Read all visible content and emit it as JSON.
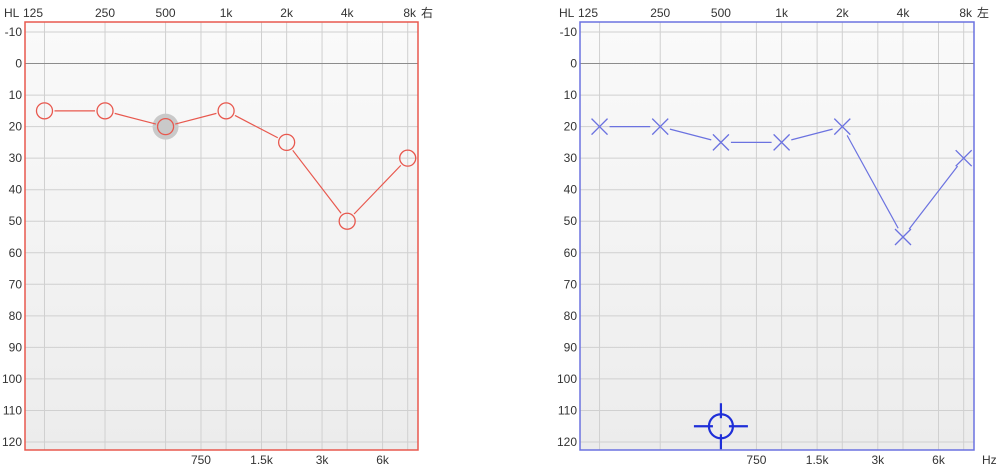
{
  "colors": {
    "right_ear": "#e8584e",
    "left_ear": "#6b72e0",
    "left_cursor": "#1f2fd8",
    "grid": "#d0d0d0",
    "zero_line": "#8c8c8c",
    "selection_halo": "#c9c9c9",
    "plot_background_top": "#fafafa",
    "plot_background_bottom": "#ececec"
  },
  "chart_data": [
    {
      "type": "scatter",
      "ear_label": "右",
      "hl_label": "HL",
      "hz_label": "",
      "x_scale": "log",
      "x_top_ticks": [
        {
          "value": 125,
          "label": "125"
        },
        {
          "value": 250,
          "label": "250"
        },
        {
          "value": 500,
          "label": "500"
        },
        {
          "value": 1000,
          "label": "1k"
        },
        {
          "value": 2000,
          "label": "2k"
        },
        {
          "value": 4000,
          "label": "4k"
        },
        {
          "value": 8000,
          "label": "8k"
        }
      ],
      "x_bottom_ticks": [
        {
          "value": 750,
          "label": "750"
        },
        {
          "value": 1500,
          "label": "1.5k"
        },
        {
          "value": 3000,
          "label": "3k"
        },
        {
          "value": 6000,
          "label": "6k"
        }
      ],
      "y_ticks": [
        -10,
        0,
        10,
        20,
        30,
        40,
        50,
        60,
        70,
        80,
        90,
        100,
        110,
        120
      ],
      "ylim": [
        -10,
        120
      ],
      "y_inverted": true,
      "grid": true,
      "marker": "circle",
      "series": [
        {
          "x": [
            125,
            250,
            500,
            1000,
            2000,
            4000,
            8000
          ],
          "y": [
            15,
            15,
            20,
            15,
            25,
            50,
            30
          ]
        }
      ],
      "selected_point": {
        "x": 500,
        "y": 20
      }
    },
    {
      "type": "scatter",
      "ear_label": "左",
      "hl_label": "HL",
      "hz_label": "Hz",
      "x_scale": "log",
      "x_top_ticks": [
        {
          "value": 125,
          "label": "125"
        },
        {
          "value": 250,
          "label": "250"
        },
        {
          "value": 500,
          "label": "500"
        },
        {
          "value": 1000,
          "label": "1k"
        },
        {
          "value": 2000,
          "label": "2k"
        },
        {
          "value": 4000,
          "label": "4k"
        },
        {
          "value": 8000,
          "label": "8k"
        }
      ],
      "x_bottom_ticks": [
        {
          "value": 750,
          "label": "750"
        },
        {
          "value": 1500,
          "label": "1.5k"
        },
        {
          "value": 3000,
          "label": "3k"
        },
        {
          "value": 6000,
          "label": "6k"
        }
      ],
      "y_ticks": [
        -10,
        0,
        10,
        20,
        30,
        40,
        50,
        60,
        70,
        80,
        90,
        100,
        110,
        120
      ],
      "ylim": [
        -10,
        120
      ],
      "y_inverted": true,
      "grid": true,
      "marker": "cross",
      "series": [
        {
          "x": [
            125,
            250,
            500,
            1000,
            2000,
            4000,
            8000
          ],
          "y": [
            20,
            20,
            25,
            25,
            20,
            55,
            30
          ]
        }
      ],
      "cursor": {
        "x": 500,
        "y": 115
      }
    }
  ]
}
